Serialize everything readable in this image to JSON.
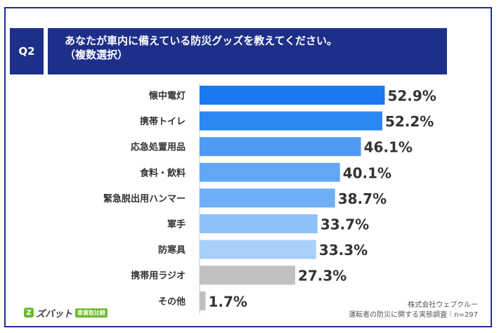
{
  "question": {
    "label": "Q2",
    "line1": "あなたが車内に備えている防災グッズを教えてください。",
    "line2": "（複数選択）"
  },
  "chart_data": {
    "type": "bar",
    "orientation": "horizontal",
    "categories": [
      "懐中電灯",
      "携帯トイレ",
      "応急処置用品",
      "食料・飲料",
      "緊急脱出用ハンマー",
      "軍手",
      "防寒具",
      "携帯用ラジオ",
      "その他"
    ],
    "values": [
      52.9,
      52.2,
      46.1,
      40.1,
      38.7,
      33.7,
      33.3,
      27.3,
      1.7
    ],
    "value_labels": [
      "52.9%",
      "52.2%",
      "46.1%",
      "40.1%",
      "38.7%",
      "33.7%",
      "33.3%",
      "27.3%",
      "1.7%"
    ],
    "colors": [
      "#1a78f0",
      "#2b87f2",
      "#4f9af4",
      "#62a7f6",
      "#6eb0f7",
      "#8fc1f9",
      "#a9cffb",
      "#c0c0c0",
      "#c0c0c0"
    ],
    "xlim": [
      0,
      60
    ],
    "unit": "%",
    "grid": false,
    "legend": "none"
  },
  "footer": {
    "company": "株式会社ウェブクルー",
    "source": "運転者の防災に関する実態調査｜n=297"
  },
  "logo": {
    "mark": "Z",
    "name": "ズバット",
    "tag": "車買取比較"
  }
}
